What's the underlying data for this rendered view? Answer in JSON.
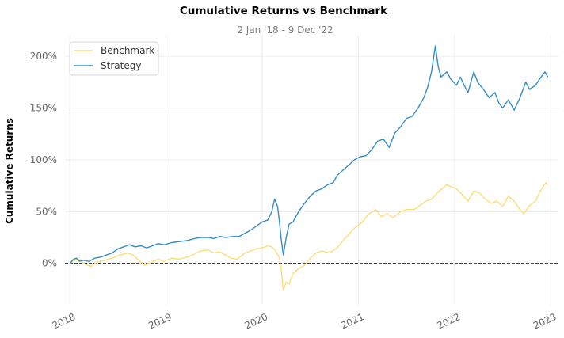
{
  "chart_data": {
    "type": "line",
    "title": "Cumulative Returns vs Benchmark",
    "subtitle": "2 Jan '18 -  9 Dec '22",
    "ylabel": "Cumulative Returns",
    "xlabel": "",
    "x_range": [
      2017.95,
      2023.08
    ],
    "ylim": [
      -40,
      220
    ],
    "x_ticks": [
      {
        "value": 2018,
        "label": "2018"
      },
      {
        "value": 2019,
        "label": "2019"
      },
      {
        "value": 2020,
        "label": "2020"
      },
      {
        "value": 2021,
        "label": "2021"
      },
      {
        "value": 2022,
        "label": "2022"
      },
      {
        "value": 2023,
        "label": "2023"
      }
    ],
    "y_ticks": [
      {
        "value": 0,
        "label": "0%"
      },
      {
        "value": 50,
        "label": "50%"
      },
      {
        "value": 100,
        "label": "100%"
      },
      {
        "value": 150,
        "label": "150%"
      },
      {
        "value": 200,
        "label": "200%"
      }
    ],
    "grid": true,
    "zero_line": "dashed",
    "legend_position": "top-left",
    "series": [
      {
        "name": "Benchmark",
        "color": "#fddd79",
        "points": [
          [
            2018.0,
            0
          ],
          [
            2018.06,
            3
          ],
          [
            2018.1,
            4
          ],
          [
            2018.16,
            -1
          ],
          [
            2018.22,
            -3
          ],
          [
            2018.28,
            1
          ],
          [
            2018.36,
            3
          ],
          [
            2018.44,
            5
          ],
          [
            2018.52,
            8
          ],
          [
            2018.6,
            10
          ],
          [
            2018.66,
            8
          ],
          [
            2018.72,
            3
          ],
          [
            2018.78,
            -2
          ],
          [
            2018.84,
            1
          ],
          [
            2018.92,
            4
          ],
          [
            2018.98,
            2
          ],
          [
            2019.06,
            5
          ],
          [
            2019.14,
            4
          ],
          [
            2019.22,
            6
          ],
          [
            2019.3,
            9
          ],
          [
            2019.36,
            12
          ],
          [
            2019.44,
            13
          ],
          [
            2019.5,
            10
          ],
          [
            2019.56,
            11
          ],
          [
            2019.62,
            8
          ],
          [
            2019.68,
            5
          ],
          [
            2019.74,
            4
          ],
          [
            2019.82,
            10
          ],
          [
            2019.88,
            12
          ],
          [
            2019.94,
            14
          ],
          [
            2020.0,
            15
          ],
          [
            2020.06,
            17
          ],
          [
            2020.1,
            16
          ],
          [
            2020.14,
            12
          ],
          [
            2020.18,
            5
          ],
          [
            2020.2,
            -8
          ],
          [
            2020.22,
            -26
          ],
          [
            2020.25,
            -18
          ],
          [
            2020.28,
            -20
          ],
          [
            2020.32,
            -10
          ],
          [
            2020.38,
            -5
          ],
          [
            2020.44,
            -2
          ],
          [
            2020.5,
            5
          ],
          [
            2020.56,
            10
          ],
          [
            2020.62,
            12
          ],
          [
            2020.7,
            10
          ],
          [
            2020.78,
            15
          ],
          [
            2020.84,
            22
          ],
          [
            2020.9,
            28
          ],
          [
            2020.96,
            34
          ],
          [
            2021.04,
            40
          ],
          [
            2021.1,
            47
          ],
          [
            2021.18,
            52
          ],
          [
            2021.24,
            45
          ],
          [
            2021.3,
            48
          ],
          [
            2021.36,
            44
          ],
          [
            2021.44,
            50
          ],
          [
            2021.5,
            52
          ],
          [
            2021.58,
            52
          ],
          [
            2021.64,
            56
          ],
          [
            2021.7,
            60
          ],
          [
            2021.76,
            62
          ],
          [
            2021.82,
            68
          ],
          [
            2021.88,
            73
          ],
          [
            2021.92,
            76
          ],
          [
            2021.96,
            74
          ],
          [
            2022.02,
            72
          ],
          [
            2022.08,
            66
          ],
          [
            2022.14,
            60
          ],
          [
            2022.2,
            70
          ],
          [
            2022.26,
            68
          ],
          [
            2022.32,
            62
          ],
          [
            2022.38,
            58
          ],
          [
            2022.44,
            60
          ],
          [
            2022.5,
            55
          ],
          [
            2022.56,
            65
          ],
          [
            2022.62,
            60
          ],
          [
            2022.68,
            52
          ],
          [
            2022.72,
            48
          ],
          [
            2022.78,
            56
          ],
          [
            2022.84,
            60
          ],
          [
            2022.88,
            68
          ],
          [
            2022.92,
            74
          ],
          [
            2022.95,
            78
          ],
          [
            2022.97,
            76
          ]
        ]
      },
      {
        "name": "Strategy",
        "color": "#348dc1",
        "points": [
          [
            2018.0,
            0
          ],
          [
            2018.04,
            4
          ],
          [
            2018.07,
            5
          ],
          [
            2018.1,
            2
          ],
          [
            2018.14,
            3
          ],
          [
            2018.2,
            2
          ],
          [
            2018.26,
            5
          ],
          [
            2018.32,
            6
          ],
          [
            2018.38,
            8
          ],
          [
            2018.44,
            10
          ],
          [
            2018.5,
            14
          ],
          [
            2018.56,
            16
          ],
          [
            2018.62,
            18
          ],
          [
            2018.68,
            16
          ],
          [
            2018.74,
            17
          ],
          [
            2018.8,
            15
          ],
          [
            2018.86,
            17
          ],
          [
            2018.92,
            19
          ],
          [
            2018.98,
            18
          ],
          [
            2019.06,
            20
          ],
          [
            2019.14,
            21
          ],
          [
            2019.22,
            22
          ],
          [
            2019.3,
            24
          ],
          [
            2019.36,
            25
          ],
          [
            2019.44,
            25
          ],
          [
            2019.5,
            24
          ],
          [
            2019.56,
            26
          ],
          [
            2019.62,
            25
          ],
          [
            2019.7,
            26
          ],
          [
            2019.76,
            26
          ],
          [
            2019.82,
            29
          ],
          [
            2019.88,
            32
          ],
          [
            2019.94,
            36
          ],
          [
            2020.0,
            40
          ],
          [
            2020.06,
            42
          ],
          [
            2020.1,
            50
          ],
          [
            2020.13,
            62
          ],
          [
            2020.16,
            55
          ],
          [
            2020.18,
            40
          ],
          [
            2020.2,
            22
          ],
          [
            2020.22,
            8
          ],
          [
            2020.25,
            25
          ],
          [
            2020.28,
            38
          ],
          [
            2020.32,
            40
          ],
          [
            2020.38,
            50
          ],
          [
            2020.44,
            58
          ],
          [
            2020.5,
            65
          ],
          [
            2020.56,
            70
          ],
          [
            2020.62,
            72
          ],
          [
            2020.68,
            76
          ],
          [
            2020.74,
            78
          ],
          [
            2020.78,
            85
          ],
          [
            2020.84,
            90
          ],
          [
            2020.9,
            95
          ],
          [
            2020.96,
            100
          ],
          [
            2021.02,
            103
          ],
          [
            2021.08,
            104
          ],
          [
            2021.14,
            110
          ],
          [
            2021.2,
            118
          ],
          [
            2021.26,
            120
          ],
          [
            2021.32,
            112
          ],
          [
            2021.38,
            126
          ],
          [
            2021.44,
            132
          ],
          [
            2021.5,
            140
          ],
          [
            2021.56,
            142
          ],
          [
            2021.62,
            150
          ],
          [
            2021.68,
            160
          ],
          [
            2021.72,
            170
          ],
          [
            2021.76,
            185
          ],
          [
            2021.8,
            210
          ],
          [
            2021.83,
            190
          ],
          [
            2021.86,
            180
          ],
          [
            2021.92,
            185
          ],
          [
            2021.96,
            178
          ],
          [
            2022.02,
            172
          ],
          [
            2022.06,
            180
          ],
          [
            2022.1,
            172
          ],
          [
            2022.14,
            165
          ],
          [
            2022.2,
            185
          ],
          [
            2022.24,
            175
          ],
          [
            2022.3,
            168
          ],
          [
            2022.36,
            160
          ],
          [
            2022.42,
            165
          ],
          [
            2022.46,
            155
          ],
          [
            2022.5,
            150
          ],
          [
            2022.56,
            158
          ],
          [
            2022.62,
            148
          ],
          [
            2022.68,
            160
          ],
          [
            2022.74,
            175
          ],
          [
            2022.78,
            168
          ],
          [
            2022.84,
            172
          ],
          [
            2022.9,
            180
          ],
          [
            2022.94,
            185
          ],
          [
            2022.97,
            180
          ]
        ]
      }
    ]
  }
}
